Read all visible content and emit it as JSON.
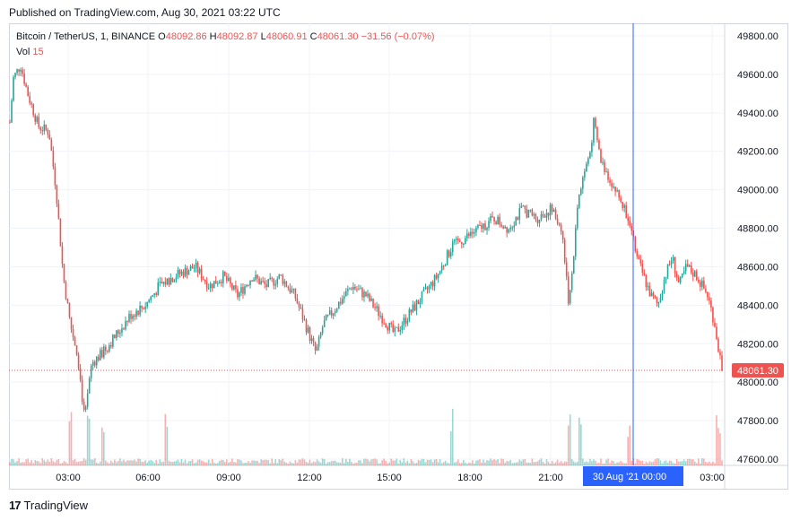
{
  "header": {
    "published": "Published on TradingView.com, Aug 30, 2021 03:22 UTC"
  },
  "legend": {
    "symbol": "Bitcoin / TetherUS, 1, BINANCE",
    "open_label": "O",
    "open": "48092.86",
    "high_label": "H",
    "high": "48092.87",
    "low_label": "L",
    "low": "48060.91",
    "close_label": "C",
    "close": "48061.30",
    "change": "−31.56 (−0.07%)",
    "vol_label": "Vol",
    "vol": "15"
  },
  "footer": {
    "brand": "TradingView",
    "brand_mark": "17"
  },
  "colors": {
    "up": "#26a69a",
    "down": "#ef5350",
    "crosshair": "#2962ff",
    "grid": "#f0f3fa",
    "last_price": "#ef5350"
  },
  "chart_data": {
    "type": "candlestick",
    "symbol": "Bitcoin / TetherUS",
    "interval": "1",
    "exchange": "BINANCE",
    "y_ticks": [
      "49800.00",
      "49600.00",
      "49400.00",
      "49200.00",
      "49000.00",
      "48800.00",
      "48600.00",
      "48400.00",
      "48200.00",
      "48000.00",
      "47800.00",
      "47600.00"
    ],
    "ylim": [
      47600,
      49840
    ],
    "x_ticks": [
      "03:00",
      "06:00",
      "09:00",
      "12:00",
      "15:00",
      "18:00",
      "21:00",
      "00:00",
      "03:00"
    ],
    "crosshair_label": "30 Aug '21   00:00",
    "last_price": 48061.3,
    "grid": true,
    "price_path": [
      [
        0.0,
        49350
      ],
      [
        0.005,
        49580
      ],
      [
        0.015,
        49650
      ],
      [
        0.025,
        49500
      ],
      [
        0.04,
        49330
      ],
      [
        0.055,
        49300
      ],
      [
        0.065,
        49000
      ],
      [
        0.075,
        48550
      ],
      [
        0.085,
        48300
      ],
      [
        0.095,
        48150
      ],
      [
        0.105,
        47800
      ],
      [
        0.115,
        48100
      ],
      [
        0.13,
        48150
      ],
      [
        0.15,
        48250
      ],
      [
        0.17,
        48350
      ],
      [
        0.19,
        48400
      ],
      [
        0.21,
        48500
      ],
      [
        0.23,
        48550
      ],
      [
        0.26,
        48600
      ],
      [
        0.28,
        48500
      ],
      [
        0.3,
        48550
      ],
      [
        0.32,
        48450
      ],
      [
        0.34,
        48550
      ],
      [
        0.36,
        48500
      ],
      [
        0.38,
        48550
      ],
      [
        0.4,
        48450
      ],
      [
        0.42,
        48250
      ],
      [
        0.43,
        48150
      ],
      [
        0.44,
        48300
      ],
      [
        0.46,
        48400
      ],
      [
        0.48,
        48500
      ],
      [
        0.5,
        48450
      ],
      [
        0.52,
        48350
      ],
      [
        0.54,
        48250
      ],
      [
        0.56,
        48350
      ],
      [
        0.58,
        48450
      ],
      [
        0.6,
        48550
      ],
      [
        0.62,
        48700
      ],
      [
        0.64,
        48750
      ],
      [
        0.66,
        48800
      ],
      [
        0.68,
        48850
      ],
      [
        0.7,
        48800
      ],
      [
        0.72,
        48900
      ],
      [
        0.74,
        48850
      ],
      [
        0.76,
        48900
      ],
      [
        0.775,
        48800
      ],
      [
        0.785,
        48400
      ],
      [
        0.8,
        49000
      ],
      [
        0.815,
        49200
      ],
      [
        0.82,
        49350
      ],
      [
        0.83,
        49150
      ],
      [
        0.85,
        49000
      ],
      [
        0.87,
        48850
      ],
      [
        0.88,
        48650
      ],
      [
        0.89,
        48550
      ],
      [
        0.9,
        48450
      ],
      [
        0.91,
        48400
      ],
      [
        0.92,
        48550
      ],
      [
        0.93,
        48650
      ],
      [
        0.94,
        48500
      ],
      [
        0.95,
        48600
      ],
      [
        0.965,
        48550
      ],
      [
        0.98,
        48450
      ],
      [
        0.99,
        48300
      ],
      [
        1.0,
        48061
      ]
    ],
    "volume_spikes": [
      0.11,
      0.13,
      0.085,
      0.22,
      0.62,
      0.785,
      0.8,
      0.87,
      0.995
    ]
  }
}
